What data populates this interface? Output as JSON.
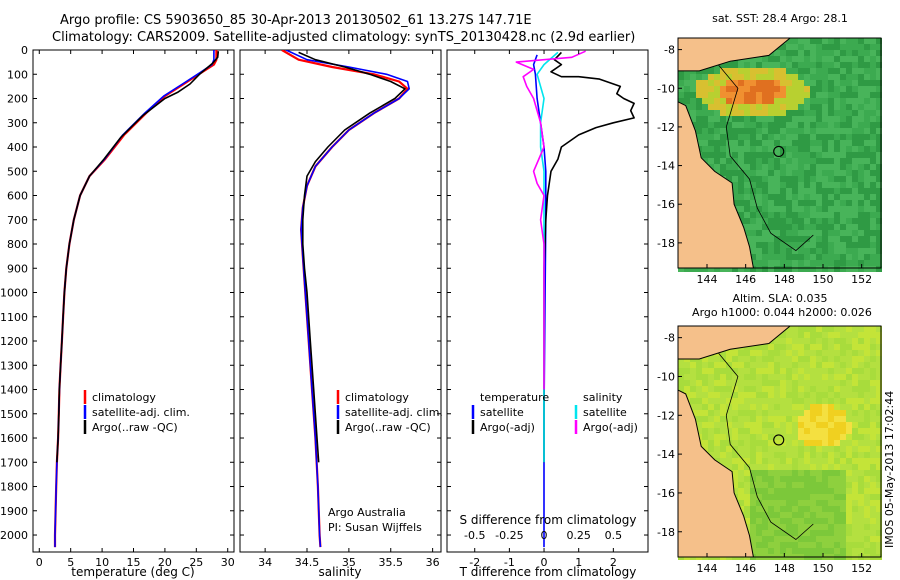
{
  "title_line1": "Argo profile: CS 5903650_85 30-Apr-2013 20130502_61 13.27S 147.71E",
  "title_line2": "Climatology: CARS2009. Satellite-adjusted climatology: synTS_20130428.nc (2.9d earlier)",
  "footer_stamp": "IMOS 05-May-2013 17:02:44",
  "colors": {
    "clim": "#ff0000",
    "sat": "#0000ff",
    "argo": "#000000",
    "sat_s": "#00e5ee",
    "argo_s": "#ff00ff",
    "land": "#f5c08a"
  },
  "chart_data": [
    {
      "type": "line",
      "id": "temperature",
      "xlabel": "temperature (deg C)",
      "ylabel": "",
      "xlim": [
        -1,
        31
      ],
      "ylim": [
        2070,
        0
      ],
      "xticks": [
        0,
        5,
        10,
        15,
        20,
        25,
        30
      ],
      "yticks": [
        0,
        100,
        200,
        300,
        400,
        500,
        600,
        700,
        800,
        900,
        1000,
        1100,
        1200,
        1300,
        1400,
        1500,
        1600,
        1700,
        1800,
        1900,
        2000
      ],
      "legend": {
        "entries": [
          "climatology",
          "satellite-adj. clim.",
          "Argo(..raw -QC)"
        ]
      },
      "series": [
        {
          "name": "climatology",
          "color": "#ff0000",
          "points": [
            [
              28.2,
              0
            ],
            [
              28.2,
              40
            ],
            [
              27.8,
              60
            ],
            [
              26,
              90
            ],
            [
              23,
              140
            ],
            [
              20,
              190
            ],
            [
              17,
              260
            ],
            [
              13.5,
              350
            ],
            [
              10.5,
              450
            ],
            [
              8,
              520
            ],
            [
              6.5,
              600
            ],
            [
              5.5,
              700
            ],
            [
              4.8,
              800
            ],
            [
              4.3,
              900
            ],
            [
              4,
              1000
            ],
            [
              3.8,
              1100
            ],
            [
              3.6,
              1200
            ],
            [
              3.4,
              1300
            ],
            [
              3.2,
              1400
            ],
            [
              3.1,
              1500
            ],
            [
              3,
              1600
            ],
            [
              2.8,
              1700
            ],
            [
              2.7,
              1800
            ],
            [
              2.6,
              1900
            ],
            [
              2.5,
              2000
            ],
            [
              2.5,
              2050
            ]
          ]
        },
        {
          "name": "satellite-adj. clim.",
          "color": "#0000ff",
          "points": [
            [
              27.8,
              0
            ],
            [
              27.8,
              40
            ],
            [
              27.5,
              60
            ],
            [
              25.8,
              90
            ],
            [
              22.8,
              140
            ],
            [
              19.8,
              190
            ],
            [
              16.8,
              260
            ],
            [
              13.3,
              350
            ],
            [
              10.4,
              450
            ],
            [
              8,
              520
            ],
            [
              6.5,
              600
            ],
            [
              5.5,
              700
            ],
            [
              4.8,
              800
            ],
            [
              4.3,
              900
            ],
            [
              4,
              1000
            ],
            [
              3.8,
              1100
            ],
            [
              3.6,
              1200
            ],
            [
              3.4,
              1300
            ],
            [
              3.2,
              1400
            ],
            [
              3.1,
              1500
            ],
            [
              3,
              1600
            ],
            [
              2.8,
              1700
            ],
            [
              2.7,
              1800
            ],
            [
              2.6,
              1900
            ],
            [
              2.5,
              2000
            ],
            [
              2.5,
              2050
            ]
          ]
        },
        {
          "name": "Argo(..raw -QC)",
          "color": "#000000",
          "points": [
            [
              28.5,
              5
            ],
            [
              28.4,
              30
            ],
            [
              27.6,
              55
            ],
            [
              25.5,
              100
            ],
            [
              24,
              140
            ],
            [
              22,
              175
            ],
            [
              20,
              200
            ],
            [
              18,
              240
            ],
            [
              16.5,
              270
            ],
            [
              13,
              360
            ],
            [
              10.3,
              450
            ],
            [
              8,
              520
            ],
            [
              6.5,
              600
            ],
            [
              5.5,
              700
            ],
            [
              4.8,
              800
            ],
            [
              4.3,
              900
            ],
            [
              4,
              1000
            ],
            [
              3.8,
              1100
            ],
            [
              3.6,
              1200
            ],
            [
              3.4,
              1300
            ],
            [
              3.2,
              1400
            ],
            [
              3.1,
              1500
            ],
            [
              3,
              1600
            ],
            [
              2.8,
              1700
            ]
          ]
        }
      ]
    },
    {
      "type": "line",
      "id": "salinity",
      "xlabel": "salinity",
      "ylabel": "",
      "xlim": [
        33.7,
        36.1
      ],
      "ylim": [
        2070,
        0
      ],
      "xticks": [
        34,
        34.5,
        35,
        35.5,
        36
      ],
      "legend": {
        "entries": [
          "climatology",
          "satellite-adj. clim.",
          "Argo(..raw -QC)"
        ]
      },
      "annotations": [
        "Argo Australia",
        "PI: Susan Wijffels"
      ],
      "series": [
        {
          "name": "climatology",
          "color": "#ff0000",
          "points": [
            [
              34.2,
              0
            ],
            [
              34.4,
              40
            ],
            [
              34.8,
              70
            ],
            [
              35.3,
              100
            ],
            [
              35.6,
              130
            ],
            [
              35.7,
              160
            ],
            [
              35.6,
              200
            ],
            [
              35.3,
              260
            ],
            [
              35,
              330
            ],
            [
              34.8,
              400
            ],
            [
              34.6,
              480
            ],
            [
              34.5,
              560
            ],
            [
              34.45,
              650
            ],
            [
              34.43,
              740
            ],
            [
              34.45,
              850
            ],
            [
              34.48,
              1000
            ],
            [
              34.52,
              1200
            ],
            [
              34.56,
              1400
            ],
            [
              34.6,
              1600
            ],
            [
              34.63,
              1800
            ],
            [
              34.65,
              2000
            ],
            [
              34.66,
              2050
            ]
          ]
        },
        {
          "name": "satellite-adj. clim.",
          "color": "#0000ff",
          "points": [
            [
              34.25,
              0
            ],
            [
              34.5,
              40
            ],
            [
              35,
              70
            ],
            [
              35.45,
              100
            ],
            [
              35.7,
              130
            ],
            [
              35.72,
              160
            ],
            [
              35.6,
              200
            ],
            [
              35.3,
              260
            ],
            [
              35,
              330
            ],
            [
              34.8,
              400
            ],
            [
              34.6,
              480
            ],
            [
              34.5,
              560
            ],
            [
              34.45,
              650
            ],
            [
              34.43,
              740
            ],
            [
              34.45,
              850
            ],
            [
              34.48,
              1000
            ],
            [
              34.52,
              1200
            ],
            [
              34.56,
              1400
            ],
            [
              34.6,
              1600
            ],
            [
              34.63,
              1800
            ],
            [
              34.65,
              2000
            ],
            [
              34.66,
              2050
            ]
          ]
        },
        {
          "name": "Argo(..raw -QC)",
          "color": "#000000",
          "points": [
            [
              34.4,
              10
            ],
            [
              34.6,
              40
            ],
            [
              34.95,
              70
            ],
            [
              35.25,
              100
            ],
            [
              35.5,
              130
            ],
            [
              35.67,
              160
            ],
            [
              35.55,
              200
            ],
            [
              35.25,
              260
            ],
            [
              34.95,
              330
            ],
            [
              34.75,
              400
            ],
            [
              34.6,
              460
            ],
            [
              34.5,
              520
            ],
            [
              34.47,
              600
            ],
            [
              34.45,
              700
            ],
            [
              34.45,
              800
            ],
            [
              34.47,
              900
            ],
            [
              34.5,
              1000
            ],
            [
              34.54,
              1200
            ],
            [
              34.58,
              1400
            ],
            [
              34.62,
              1600
            ],
            [
              34.64,
              1700
            ]
          ]
        }
      ]
    },
    {
      "type": "line",
      "id": "difference",
      "xlabel_top": "S difference from climatology",
      "xlabel": "T difference from climatology",
      "xlim": [
        -2.8,
        3.0
      ],
      "ylim": [
        2070,
        0
      ],
      "xticks": [
        -2,
        -1,
        0,
        1,
        2
      ],
      "top_ticks": [
        "-0.5",
        "-0.25",
        "0",
        "0.25",
        "0.5"
      ],
      "top_tick_pos": [
        -2,
        -1,
        0,
        1,
        2
      ],
      "legend": {
        "temperature": [
          "temperature",
          "satellite",
          "Argo(-adj)"
        ],
        "salinity": [
          "salinity",
          "satellite",
          "Argo(-adj)"
        ]
      },
      "series": [
        {
          "name": "T satellite",
          "color": "#0000ff",
          "points": [
            [
              -0.2,
              20
            ],
            [
              -0.3,
              60
            ],
            [
              -0.25,
              100
            ],
            [
              -0.2,
              200
            ],
            [
              -0.1,
              300
            ],
            [
              0,
              400
            ],
            [
              0.05,
              500
            ],
            [
              0.05,
              700
            ],
            [
              0.03,
              1000
            ],
            [
              0,
              1500
            ],
            [
              0,
              2000
            ],
            [
              0,
              2050
            ]
          ]
        },
        {
          "name": "T Argo(-adj)",
          "color": "#000000",
          "points": [
            [
              0.5,
              10
            ],
            [
              0.3,
              40
            ],
            [
              0.5,
              60
            ],
            [
              0.2,
              90
            ],
            [
              0.5,
              110
            ],
            [
              1,
              110
            ],
            [
              1.6,
              120
            ],
            [
              2.2,
              150
            ],
            [
              2.1,
              180
            ],
            [
              2.3,
              200
            ],
            [
              2.6,
              220
            ],
            [
              2.5,
              250
            ],
            [
              2.6,
              280
            ],
            [
              2,
              300
            ],
            [
              1.5,
              320
            ],
            [
              1,
              350
            ],
            [
              0.5,
              400
            ],
            [
              0.4,
              450
            ],
            [
              0.2,
              500
            ],
            [
              0.1,
              600
            ],
            [
              0.05,
              700
            ],
            [
              0,
              900
            ],
            [
              0,
              1200
            ],
            [
              0,
              1700
            ]
          ]
        },
        {
          "name": "S satellite",
          "color": "#00e5ee",
          "points": [
            [
              0.4,
              10
            ],
            [
              0,
              60
            ],
            [
              -0.2,
              100
            ],
            [
              0,
              200
            ],
            [
              -0.1,
              300
            ],
            [
              -0.1,
              400
            ],
            [
              0,
              500
            ],
            [
              0,
              700
            ],
            [
              0,
              1000
            ],
            [
              0,
              1400
            ],
            [
              0,
              1700
            ]
          ]
        },
        {
          "name": "S Argo(-adj)",
          "color": "#ff00ff",
          "points": [
            [
              1.2,
              5
            ],
            [
              0.8,
              30
            ],
            [
              -0.8,
              50
            ],
            [
              -0.3,
              80
            ],
            [
              -0.6,
              110
            ],
            [
              -0.5,
              150
            ],
            [
              -0.3,
              200
            ],
            [
              -0.1,
              300
            ],
            [
              0,
              400
            ],
            [
              -0.3,
              500
            ],
            [
              -0.2,
              550
            ],
            [
              0,
              600
            ],
            [
              -0.1,
              700
            ],
            [
              0,
              800
            ],
            [
              0,
              1000
            ],
            [
              0,
              1400
            ]
          ]
        }
      ]
    },
    {
      "type": "heatmap",
      "id": "sst_map",
      "title": "sat. SST: 28.4 Argo: 28.1",
      "xticks": [
        144,
        146,
        148,
        150,
        152
      ],
      "yticks": [
        -8,
        -10,
        -12,
        -14,
        -16,
        -18
      ],
      "xlim": [
        142.5,
        153
      ],
      "ylim": [
        -19.3,
        -7.4
      ],
      "marker": [
        147.71,
        -13.27
      ]
    },
    {
      "type": "heatmap",
      "id": "sla_map",
      "title": "Altim. SLA: 0.035",
      "subtitle": "Argo h1000: 0.044 h2000: 0.026",
      "xticks": [
        144,
        146,
        148,
        150,
        152
      ],
      "yticks": [
        -8,
        -10,
        -12,
        -14,
        -16,
        -18
      ],
      "xlim": [
        142.5,
        153
      ],
      "ylim": [
        -19.3,
        -7.4
      ],
      "marker": [
        147.71,
        -13.27
      ]
    }
  ]
}
